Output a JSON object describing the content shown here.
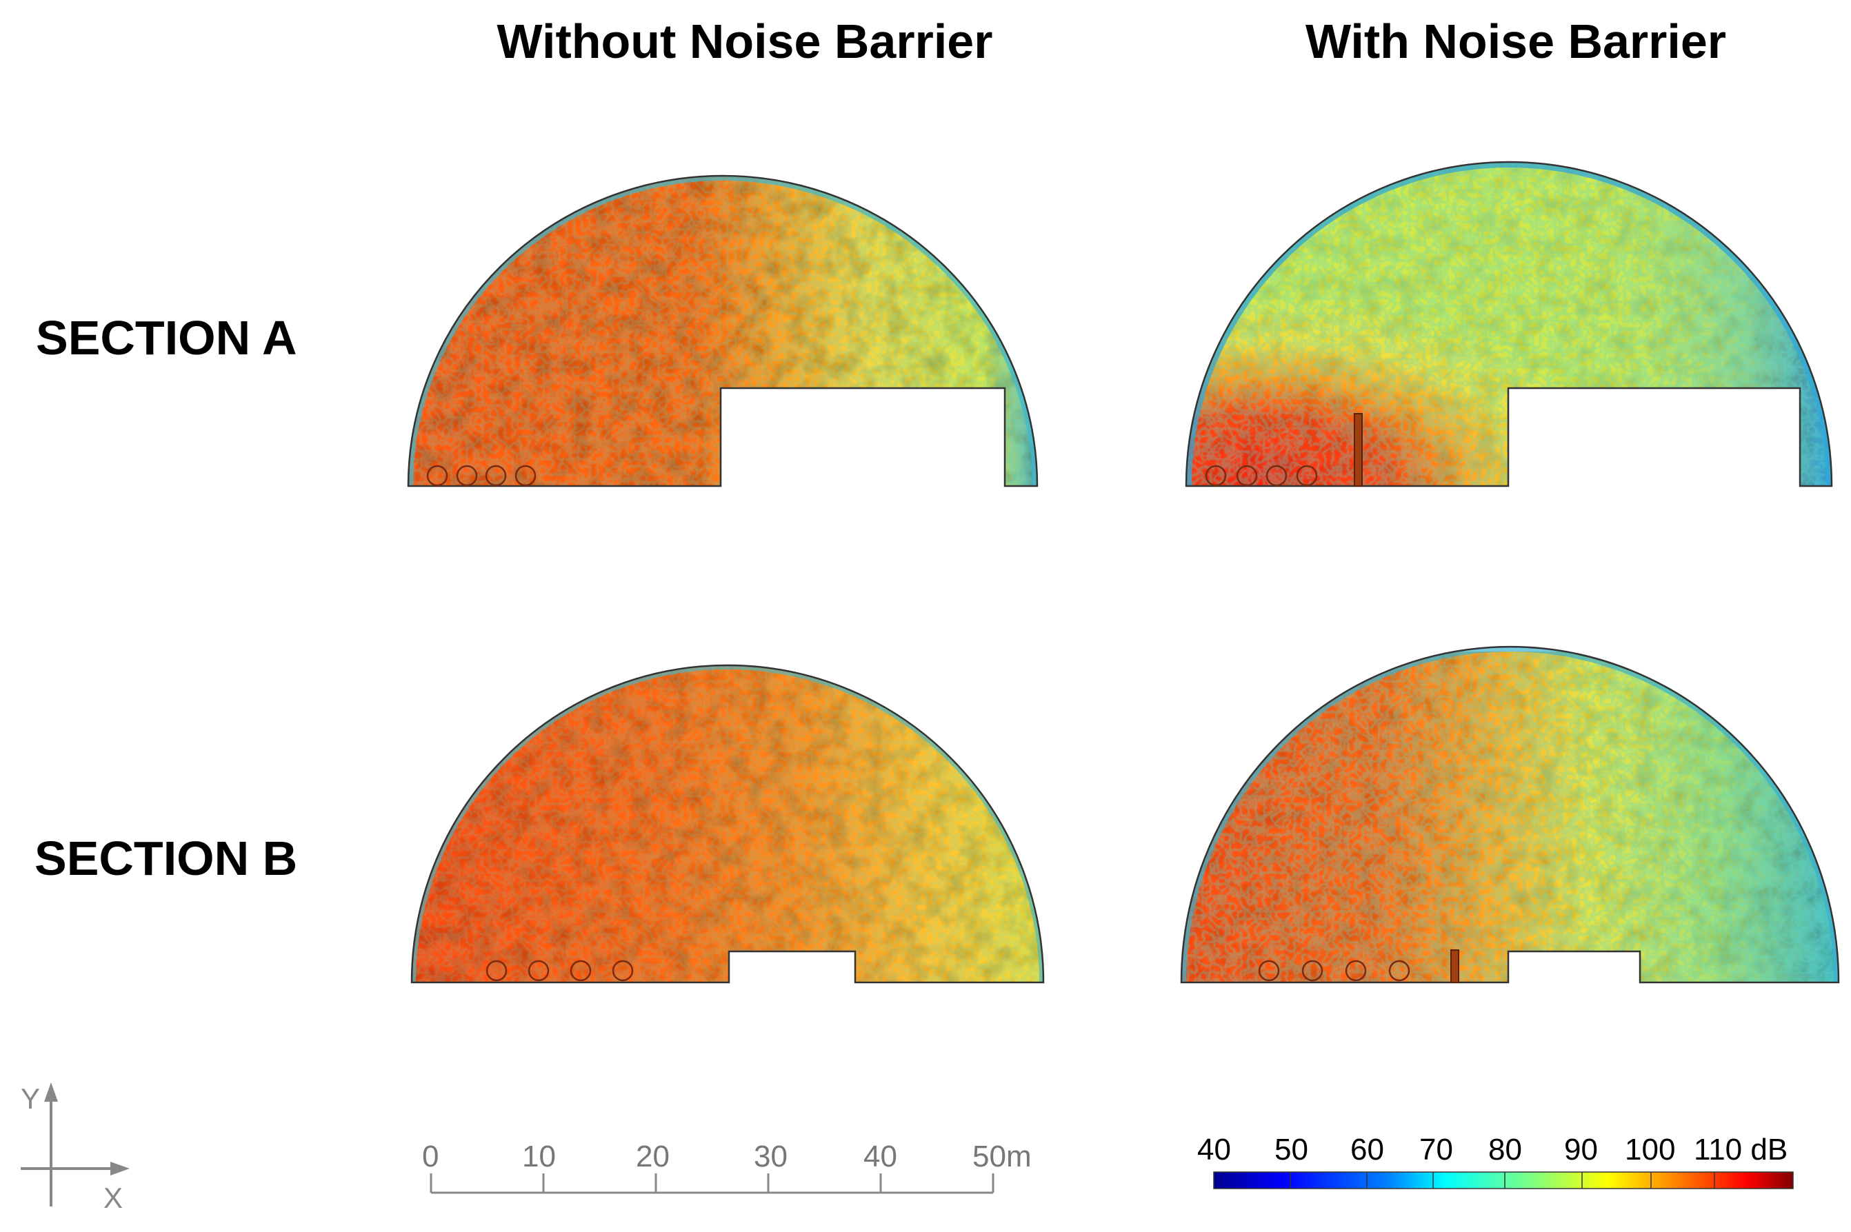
{
  "titles": {
    "left": "Without Noise Barrier",
    "right": "With Noise Barrier"
  },
  "rows": {
    "a": "SECTION A",
    "b": "SECTION B"
  },
  "axes": {
    "y": "Y",
    "x": "X"
  },
  "scale_bar": {
    "ticks": [
      "0",
      "10",
      "20",
      "30",
      "40",
      "50m"
    ]
  },
  "colorbar": {
    "labels": [
      "40",
      "50",
      "60",
      "70",
      "80",
      "90",
      "100",
      "110 dB"
    ],
    "colors": [
      "#00008f",
      "#0000ff",
      "#0080ff",
      "#00ffff",
      "#80ff80",
      "#ffff00",
      "#ff8000",
      "#ff0000",
      "#800000"
    ]
  },
  "panels": {
    "a_without": {
      "sources": 4,
      "barrier": false,
      "palette": "hot-left"
    },
    "a_with": {
      "sources": 4,
      "barrier": true,
      "palette": "hot-corner"
    },
    "b_without": {
      "sources": 4,
      "barrier": false,
      "palette": "hot-wide"
    },
    "b_with": {
      "sources": 4,
      "barrier": true,
      "palette": "hot-left-cool-right"
    }
  }
}
